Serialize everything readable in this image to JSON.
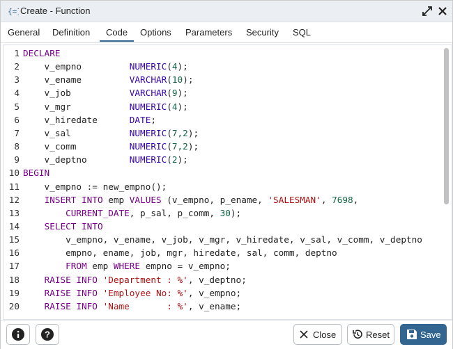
{
  "dialog": {
    "title": "Create - Function",
    "tabs": [
      "General",
      "Definition",
      "Code",
      "Options",
      "Parameters",
      "Security",
      "SQL"
    ],
    "active_tab": 2,
    "code": [
      {
        "n": 1,
        "parts": [
          {
            "text": "DECLARE",
            "style": "keyword"
          }
        ]
      },
      {
        "n": 2,
        "parts": [
          {
            "text": "    v_empno         "
          },
          {
            "text": "NUMERIC",
            "style": "type"
          },
          {
            "text": "("
          },
          {
            "text": "4",
            "style": "number"
          },
          {
            "text": ");"
          }
        ]
      },
      {
        "n": 3,
        "parts": [
          {
            "text": "    v_ename         "
          },
          {
            "text": "VARCHAR",
            "style": "type"
          },
          {
            "text": "("
          },
          {
            "text": "10",
            "style": "number"
          },
          {
            "text": ");"
          }
        ]
      },
      {
        "n": 4,
        "parts": [
          {
            "text": "    v_job           "
          },
          {
            "text": "VARCHAR",
            "style": "type"
          },
          {
            "text": "("
          },
          {
            "text": "9",
            "style": "number"
          },
          {
            "text": ");"
          }
        ]
      },
      {
        "n": 5,
        "parts": [
          {
            "text": "    v_mgr           "
          },
          {
            "text": "NUMERIC",
            "style": "type"
          },
          {
            "text": "("
          },
          {
            "text": "4",
            "style": "number"
          },
          {
            "text": ");"
          }
        ]
      },
      {
        "n": 6,
        "parts": [
          {
            "text": "    v_hiredate      "
          },
          {
            "text": "DATE",
            "style": "type"
          },
          {
            "text": ";"
          }
        ]
      },
      {
        "n": 7,
        "parts": [
          {
            "text": "    v_sal           "
          },
          {
            "text": "NUMERIC",
            "style": "type"
          },
          {
            "text": "("
          },
          {
            "text": "7,2",
            "style": "number"
          },
          {
            "text": ");"
          }
        ]
      },
      {
        "n": 8,
        "parts": [
          {
            "text": "    v_comm          "
          },
          {
            "text": "NUMERIC",
            "style": "type"
          },
          {
            "text": "("
          },
          {
            "text": "7,2",
            "style": "number"
          },
          {
            "text": ");"
          }
        ]
      },
      {
        "n": 9,
        "parts": [
          {
            "text": "    v_deptno        "
          },
          {
            "text": "NUMERIC",
            "style": "type"
          },
          {
            "text": "("
          },
          {
            "text": "2",
            "style": "number"
          },
          {
            "text": ");"
          }
        ]
      },
      {
        "n": 10,
        "parts": [
          {
            "text": "BEGIN",
            "style": "keyword"
          }
        ]
      },
      {
        "n": 11,
        "parts": [
          {
            "text": "    v_empno := new_empno();"
          }
        ]
      },
      {
        "n": 12,
        "parts": [
          {
            "text": "    "
          },
          {
            "text": "INSERT INTO",
            "style": "keyword"
          },
          {
            "text": " emp "
          },
          {
            "text": "VALUES",
            "style": "keyword"
          },
          {
            "text": " (v_empno, p_ename, "
          },
          {
            "text": "'SALESMAN'",
            "style": "string"
          },
          {
            "text": ", "
          },
          {
            "text": "7698",
            "style": "number"
          },
          {
            "text": ","
          }
        ]
      },
      {
        "n": 13,
        "parts": [
          {
            "text": "        "
          },
          {
            "text": "CURRENT_DATE",
            "style": "keyword"
          },
          {
            "text": ", p_sal, p_comm, "
          },
          {
            "text": "30",
            "style": "number"
          },
          {
            "text": ");"
          }
        ]
      },
      {
        "n": 14,
        "parts": [
          {
            "text": "    "
          },
          {
            "text": "SELECT INTO",
            "style": "keyword"
          }
        ]
      },
      {
        "n": 15,
        "parts": [
          {
            "text": "        v_empno, v_ename, v_job, v_mgr, v_hiredate, v_sal, v_comm, v_deptno"
          }
        ]
      },
      {
        "n": 16,
        "parts": [
          {
            "text": "        empno, ename, job, mgr, hiredate, sal, comm, deptno"
          }
        ]
      },
      {
        "n": 17,
        "parts": [
          {
            "text": "        "
          },
          {
            "text": "FROM",
            "style": "keyword"
          },
          {
            "text": " emp "
          },
          {
            "text": "WHERE",
            "style": "keyword"
          },
          {
            "text": " empno = v_empno;"
          }
        ]
      },
      {
        "n": 18,
        "parts": [
          {
            "text": "    "
          },
          {
            "text": "RAISE INFO",
            "style": "keyword"
          },
          {
            "text": " "
          },
          {
            "text": "'Department : %'",
            "style": "string"
          },
          {
            "text": ", v_deptno;"
          }
        ]
      },
      {
        "n": 19,
        "parts": [
          {
            "text": "    "
          },
          {
            "text": "RAISE INFO",
            "style": "keyword"
          },
          {
            "text": " "
          },
          {
            "text": "'Employee No: %'",
            "style": "string"
          },
          {
            "text": ", v_empno;"
          }
        ]
      },
      {
        "n": 20,
        "parts": [
          {
            "text": "    "
          },
          {
            "text": "RAISE INFO",
            "style": "keyword"
          },
          {
            "text": " "
          },
          {
            "text": "'Name       : %'",
            "style": "string"
          },
          {
            "text": ", v_ename;"
          }
        ]
      }
    ],
    "buttons": {
      "close": "Close",
      "reset": "Reset",
      "save": "Save"
    }
  }
}
